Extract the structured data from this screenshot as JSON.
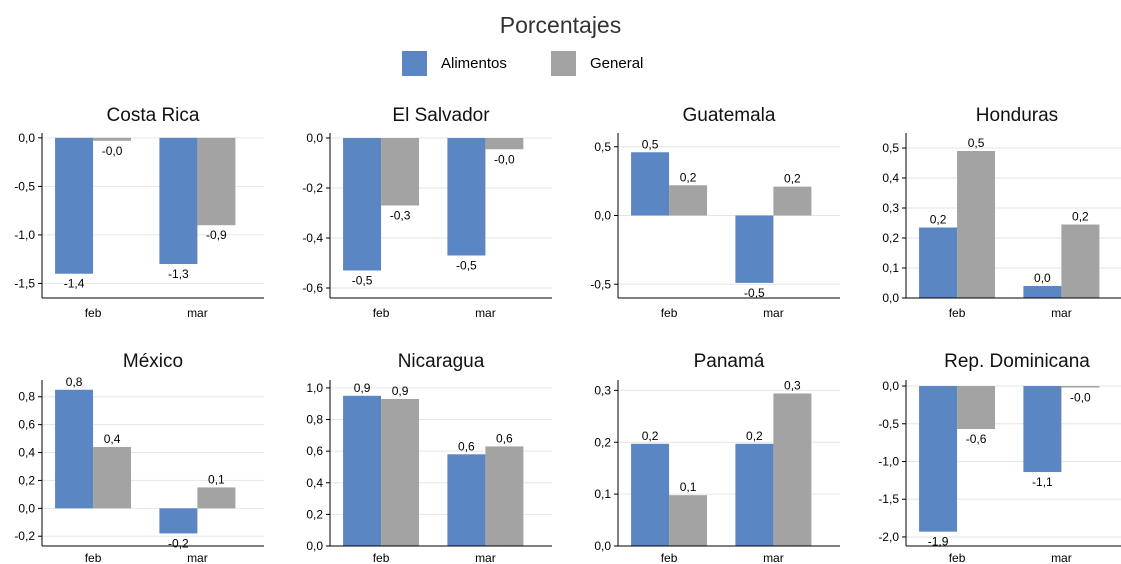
{
  "title": "Porcentajes",
  "legend": [
    {
      "name": "Alimentos",
      "color": "#5b86c4"
    },
    {
      "name": "General",
      "color": "#a3a3a3"
    }
  ],
  "chart_data": [
    {
      "type": "bar",
      "title": "Costa Rica",
      "categories": [
        "feb",
        "mar"
      ],
      "series": [
        {
          "name": "Alimentos",
          "values": [
            -1.4,
            -1.3
          ],
          "labels": [
            "-1,4",
            "-1,3"
          ]
        },
        {
          "name": "General",
          "values": [
            -0.03,
            -0.9
          ],
          "labels": [
            "-0,0",
            "-0,9"
          ]
        }
      ],
      "ylim": [
        -1.65,
        0.05
      ],
      "yticks": [
        0.0,
        -0.5,
        -1.0,
        -1.5
      ],
      "yticklabels": [
        "0,0",
        "-0,5",
        "-1,0",
        "-1,5"
      ]
    },
    {
      "type": "bar",
      "title": "El Salvador",
      "categories": [
        "feb",
        "mar"
      ],
      "series": [
        {
          "name": "Alimentos",
          "values": [
            -0.53,
            -0.47
          ],
          "labels": [
            "-0,5",
            "-0,5"
          ]
        },
        {
          "name": "General",
          "values": [
            -0.27,
            -0.045
          ],
          "labels": [
            "-0,3",
            "-0,0"
          ]
        }
      ],
      "ylim": [
        -0.64,
        0.02
      ],
      "yticks": [
        0.0,
        -0.2,
        -0.4,
        -0.6
      ],
      "yticklabels": [
        "0,0",
        "-0,2",
        "-0,4",
        "-0,6"
      ]
    },
    {
      "type": "bar",
      "title": "Guatemala",
      "categories": [
        "feb",
        "mar"
      ],
      "series": [
        {
          "name": "Alimentos",
          "values": [
            0.46,
            -0.49
          ],
          "labels": [
            "0,5",
            "-0,5"
          ]
        },
        {
          "name": "General",
          "values": [
            0.22,
            0.21
          ],
          "labels": [
            "0,2",
            "0,2"
          ]
        }
      ],
      "ylim": [
        -0.6,
        0.6
      ],
      "yticks": [
        0.5,
        0.0,
        -0.5
      ],
      "yticklabels": [
        "0,5",
        "0,0",
        "-0,5"
      ]
    },
    {
      "type": "bar",
      "title": "Honduras",
      "categories": [
        "feb",
        "mar"
      ],
      "series": [
        {
          "name": "Alimentos",
          "values": [
            0.235,
            0.04
          ],
          "labels": [
            "0,2",
            "0,0"
          ]
        },
        {
          "name": "General",
          "values": [
            0.49,
            0.245
          ],
          "labels": [
            "0,5",
            "0,2"
          ]
        }
      ],
      "ylim": [
        0.0,
        0.55
      ],
      "yticks": [
        0.5,
        0.4,
        0.3,
        0.2,
        0.1,
        0.0
      ],
      "yticklabels": [
        "0,5",
        "0,4",
        "0,3",
        "0,2",
        "0,1",
        "0,0"
      ]
    },
    {
      "type": "bar",
      "title": "México",
      "categories": [
        "feb",
        "mar"
      ],
      "series": [
        {
          "name": "Alimentos",
          "values": [
            0.85,
            -0.18
          ],
          "labels": [
            "0,8",
            "-0,2"
          ]
        },
        {
          "name": "General",
          "values": [
            0.44,
            0.15
          ],
          "labels": [
            "0,4",
            "0,1"
          ]
        }
      ],
      "ylim": [
        -0.27,
        0.92
      ],
      "yticks": [
        0.8,
        0.6,
        0.4,
        0.2,
        0.0,
        -0.2
      ],
      "yticklabels": [
        "0,8",
        "0,6",
        "0,4",
        "0,2",
        "0,0",
        "-0,2"
      ]
    },
    {
      "type": "bar",
      "title": "Nicaragua",
      "categories": [
        "feb",
        "mar"
      ],
      "series": [
        {
          "name": "Alimentos",
          "values": [
            0.95,
            0.58
          ],
          "labels": [
            "0,9",
            "0,6"
          ]
        },
        {
          "name": "General",
          "values": [
            0.93,
            0.63
          ],
          "labels": [
            "0,9",
            "0,6"
          ]
        }
      ],
      "ylim": [
        0.0,
        1.05
      ],
      "yticks": [
        1.0,
        0.8,
        0.6,
        0.4,
        0.2,
        0.0
      ],
      "yticklabels": [
        "1,0",
        "0,8",
        "0,6",
        "0,4",
        "0,2",
        "0,0"
      ]
    },
    {
      "type": "bar",
      "title": "Panamá",
      "categories": [
        "feb",
        "mar"
      ],
      "series": [
        {
          "name": "Alimentos",
          "values": [
            0.197,
            0.197
          ],
          "labels": [
            "0,2",
            "0,2"
          ]
        },
        {
          "name": "General",
          "values": [
            0.098,
            0.294
          ],
          "labels": [
            "0,1",
            "0,3"
          ]
        }
      ],
      "ylim": [
        0.0,
        0.32
      ],
      "yticks": [
        0.3,
        0.2,
        0.1,
        0.0
      ],
      "yticklabels": [
        "0,3",
        "0,2",
        "0,1",
        "0,0"
      ]
    },
    {
      "type": "bar",
      "title": "Rep. Dominicana",
      "categories": [
        "feb",
        "mar"
      ],
      "series": [
        {
          "name": "Alimentos",
          "values": [
            -1.93,
            -1.14
          ],
          "labels": [
            "-1,9",
            "-1,1"
          ]
        },
        {
          "name": "General",
          "values": [
            -0.57,
            -0.02
          ],
          "labels": [
            "-0,6",
            "-0,0"
          ]
        }
      ],
      "ylim": [
        -2.12,
        0.08
      ],
      "yticks": [
        0.0,
        -0.5,
        -1.0,
        -1.5,
        -2.0
      ],
      "yticklabels": [
        "0,0",
        "-0,5",
        "-1,0",
        "-1,5",
        "-2,0"
      ]
    }
  ]
}
